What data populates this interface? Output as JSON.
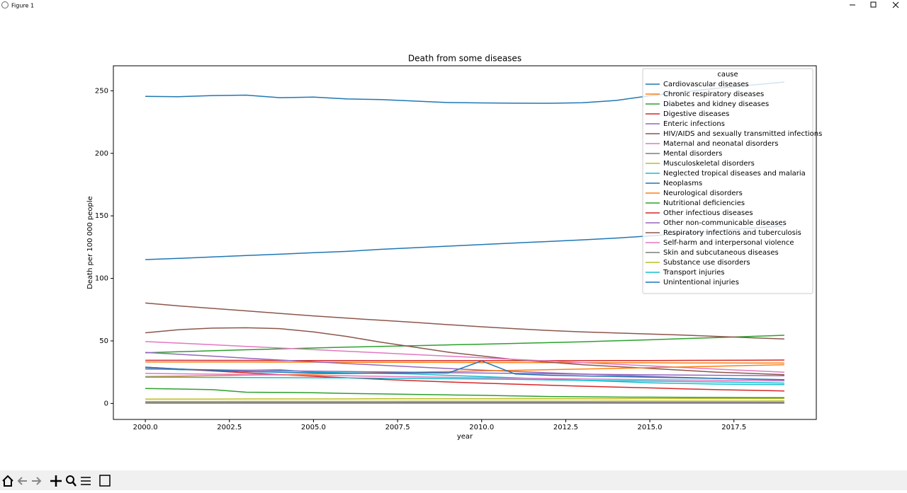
{
  "window_title": "Figure 1",
  "chart_data": {
    "type": "line",
    "title": "Death from some diseases",
    "xlabel": "year",
    "ylabel": "Death per 100 000 people",
    "legend_title": "cause",
    "legend": "upper right",
    "grid": false,
    "xlim": [
      1999.05,
      2019.95
    ],
    "ylim": [
      -12.8,
      270
    ],
    "xticks": [
      {
        "value": 2000,
        "label": "2000.0"
      },
      {
        "value": 2002.5,
        "label": "2002.5"
      },
      {
        "value": 2005,
        "label": "2005.0"
      },
      {
        "value": 2007.5,
        "label": "2007.5"
      },
      {
        "value": 2010,
        "label": "2010.0"
      },
      {
        "value": 2012.5,
        "label": "2012.5"
      },
      {
        "value": 2015,
        "label": "2015.0"
      },
      {
        "value": 2017.5,
        "label": "2017.5"
      }
    ],
    "yticks": [
      0,
      50,
      100,
      150,
      200,
      250
    ],
    "x": [
      2000,
      2001,
      2002,
      2003,
      2004,
      2005,
      2006,
      2007,
      2008,
      2009,
      2010,
      2011,
      2012,
      2013,
      2014,
      2015,
      2016,
      2017,
      2018,
      2019
    ],
    "series": [
      {
        "name": "Cardiovascular diseases",
        "color": "#1f77b4",
        "values": [
          245.5,
          245.3,
          246.2,
          246.5,
          244.5,
          245,
          243.5,
          243,
          241.8,
          240.6,
          240.3,
          240.1,
          240,
          240.5,
          242.3,
          246,
          249,
          252,
          254.5,
          257
        ]
      },
      {
        "name": "Chronic respiratory diseases",
        "color": "#ff7f0e",
        "values": [
          33.2,
          33.2,
          33.1,
          33.1,
          33,
          33,
          32.9,
          32.9,
          32.8,
          32.8,
          32.7,
          32.7,
          32.6,
          32.6,
          32.5,
          32.5,
          32.4,
          32.4,
          32.3,
          32.3
        ]
      },
      {
        "name": "Diabetes and kidney diseases",
        "color": "#2ca02c",
        "values": [
          40.5,
          41.3,
          42.1,
          42.9,
          43.6,
          44.3,
          45,
          45.6,
          46.2,
          46.8,
          47.4,
          48,
          48.6,
          49.3,
          50.1,
          50.9,
          51.8,
          52.7,
          53.6,
          54.5
        ]
      },
      {
        "name": "Digestive diseases",
        "color": "#d62728",
        "values": [
          34.5,
          34.5,
          34.4,
          34.4,
          34.3,
          34.3,
          34.3,
          34.2,
          34.2,
          34.2,
          34.2,
          34.2,
          34.2,
          34.2,
          34.3,
          34.3,
          34.4,
          34.5,
          34.6,
          34.7
        ]
      },
      {
        "name": "Enteric infections",
        "color": "#9467bd",
        "values": [
          40.8,
          39.3,
          37.8,
          36.2,
          34.7,
          33.3,
          31.9,
          30.5,
          29.2,
          27.9,
          26.7,
          25.6,
          24.5,
          23.5,
          22.5,
          21.6,
          20.8,
          20,
          19.4,
          18.8
        ]
      },
      {
        "name": "HIV/AIDS and sexually transmitted infections",
        "color": "#8c564b",
        "values": [
          56.5,
          59,
          60.2,
          60.5,
          59.8,
          57.2,
          53.5,
          49,
          45,
          41,
          38,
          35,
          33,
          31,
          29.5,
          28,
          26.5,
          25,
          24,
          23
        ]
      },
      {
        "name": "Maternal and neonatal disorders",
        "color": "#e377c2",
        "values": [
          49.5,
          48.2,
          46.9,
          45.6,
          44.3,
          43,
          41.7,
          40.4,
          39.1,
          37.8,
          36.5,
          35.2,
          33.9,
          32.6,
          31.3,
          30,
          28.7,
          27.4,
          26.2,
          25
        ]
      },
      {
        "name": "Mental disorders",
        "color": "#7f7f7f",
        "values": [
          0.2,
          0.2,
          0.2,
          0.2,
          0.2,
          0.2,
          0.2,
          0.2,
          0.2,
          0.2,
          0.2,
          0.2,
          0.2,
          0.2,
          0.2,
          0.2,
          0.2,
          0.2,
          0.2,
          0.2
        ]
      },
      {
        "name": "Musculoskeletal disorders",
        "color": "#bcbd22",
        "values": [
          3.5,
          3.5,
          3.5,
          3.6,
          3.6,
          3.6,
          3.6,
          3.7,
          3.7,
          3.7,
          3.7,
          3.8,
          3.8,
          3.8,
          3.8,
          3.9,
          3.9,
          3.9,
          4,
          4
        ]
      },
      {
        "name": "Neglected tropical diseases and malaria",
        "color": "#17becf",
        "values": [
          28,
          27,
          26.5,
          26.5,
          27,
          25,
          24.5,
          24,
          23.5,
          22.5,
          21.5,
          20.5,
          19.5,
          18.5,
          17.5,
          16.5,
          16,
          15.5,
          15.2,
          15
        ]
      },
      {
        "name": "Neoplasms",
        "color": "#1f77b4",
        "values": [
          115,
          116,
          117.2,
          118.3,
          119.3,
          120.5,
          121.6,
          123.2,
          124.5,
          125.8,
          127,
          128.3,
          129.5,
          130.8,
          132.2,
          134,
          136,
          138,
          140,
          142
        ]
      },
      {
        "name": "Neurological disorders",
        "color": "#ff7f0e",
        "values": [
          21.5,
          21.8,
          22.2,
          22.6,
          23,
          23.5,
          24,
          24.5,
          25,
          25.5,
          26,
          26.5,
          27,
          27.5,
          28,
          28.6,
          29.2,
          29.8,
          30.4,
          31
        ]
      },
      {
        "name": "Nutritional deficiencies",
        "color": "#2ca02c",
        "values": [
          12,
          11.5,
          11,
          9,
          8.8,
          8.5,
          8,
          7.6,
          7.2,
          6.8,
          6.5,
          6,
          5.5,
          5.3,
          5.1,
          5,
          4.9,
          4.8,
          4.7,
          4.6
        ]
      },
      {
        "name": "Other infectious diseases",
        "color": "#d62728",
        "values": [
          29,
          27.5,
          26,
          24.5,
          23,
          21.7,
          20.5,
          19.3,
          18.2,
          17.2,
          16.3,
          15.4,
          14.6,
          13.8,
          13.1,
          12.4,
          11.7,
          11,
          10.5,
          10
        ]
      },
      {
        "name": "Other non-communicable diseases",
        "color": "#9467bd",
        "values": [
          27.5,
          27.2,
          26.9,
          26.5,
          26.1,
          25.8,
          25.5,
          25.2,
          24.9,
          24.6,
          24.3,
          24,
          23.7,
          23.4,
          23.1,
          22.9,
          22.7,
          22.5,
          22.3,
          22.1
        ]
      },
      {
        "name": "Respiratory infections and tuberculosis",
        "color": "#8c564b",
        "values": [
          80.3,
          78,
          76,
          74,
          72,
          70,
          68.2,
          66.5,
          64.8,
          63,
          61.3,
          59.7,
          58.3,
          57.2,
          56.3,
          55.5,
          54.6,
          53.6,
          52.5,
          51.5
        ]
      },
      {
        "name": "Self-harm and interpersonal violence",
        "color": "#e377c2",
        "values": [
          24,
          23.7,
          23.4,
          23.1,
          22.8,
          22.5,
          22.1,
          21.7,
          21.3,
          20.9,
          20.5,
          20.2,
          19.9,
          19.6,
          19.3,
          19,
          18.7,
          18.4,
          18.2,
          18
        ]
      },
      {
        "name": "Skin and subcutaneous diseases",
        "color": "#7f7f7f",
        "values": [
          1,
          1,
          1,
          1,
          1,
          1,
          1,
          1,
          1,
          1,
          1,
          1,
          1,
          1,
          1,
          1,
          1,
          1,
          1,
          1
        ]
      },
      {
        "name": "Substance use disorders",
        "color": "#bcbd22",
        "values": [
          1.6,
          1.6,
          1.6,
          1.7,
          1.7,
          1.7,
          1.7,
          1.7,
          1.8,
          1.8,
          1.8,
          1.8,
          1.8,
          1.8,
          1.9,
          1.9,
          1.9,
          1.9,
          1.9,
          2
        ]
      },
      {
        "name": "Transport injuries",
        "color": "#17becf",
        "values": [
          21,
          20.9,
          20.8,
          20.7,
          20.6,
          20.5,
          20.4,
          20.2,
          20,
          19.8,
          19.5,
          19.2,
          18.8,
          18.5,
          18.2,
          17.9,
          17.5,
          17.1,
          16.7,
          16.3
        ]
      },
      {
        "name": "Unintentional injuries",
        "color": "#1f77b4",
        "values": [
          29,
          27.5,
          26.5,
          25.5,
          25,
          24.5,
          24,
          24.2,
          24.5,
          24.3,
          34,
          23.5,
          22.5,
          22,
          21.5,
          21,
          20.5,
          20,
          19.5,
          19
        ]
      }
    ]
  }
}
